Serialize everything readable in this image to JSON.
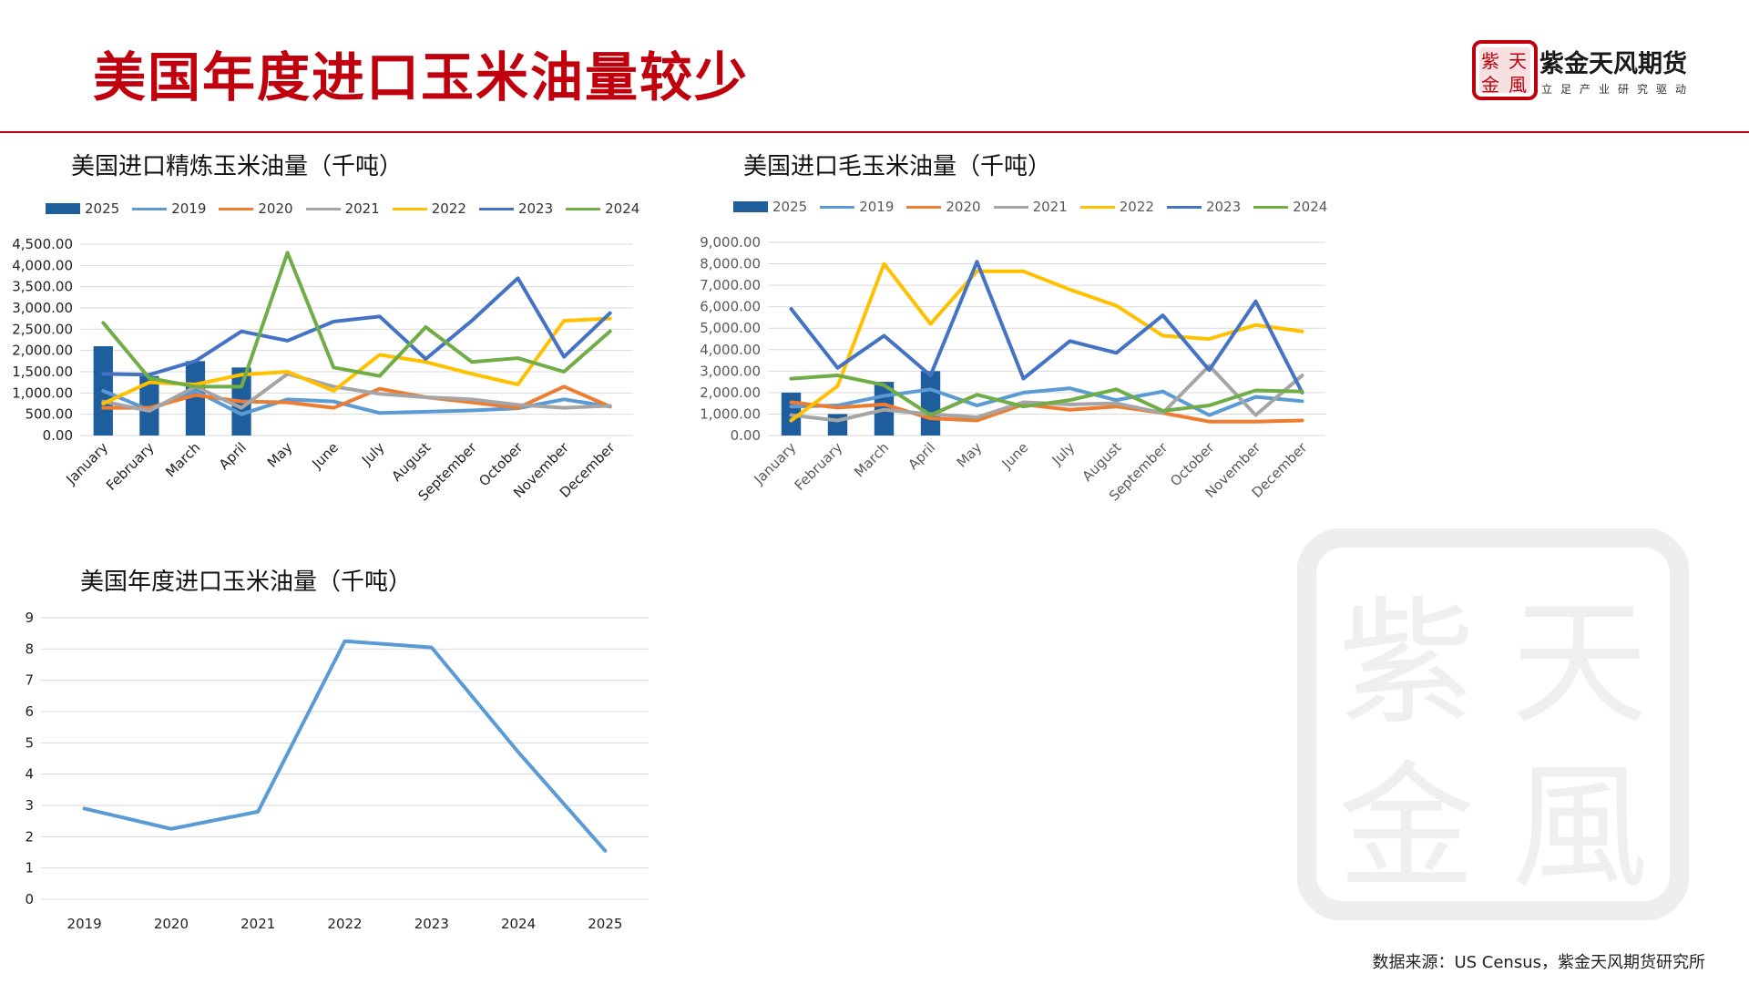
{
  "header": {
    "title": "美国年度进口玉米油量较少",
    "company_name": "紫金天风期货",
    "company_slogan": "立足产业研究驱动",
    "logo_text": "紫天金風",
    "accent_color": "#c0000c"
  },
  "source": "数据来源：US Census，紫金天风期货研究所",
  "series_colors": {
    "2025": "#1f5e9c",
    "2019": "#5b9bd5",
    "2020": "#ed7d31",
    "2021": "#a5a5a5",
    "2022": "#ffc000",
    "2023": "#4472c4",
    "2024": "#70ad47"
  },
  "chart_data": [
    {
      "type": "bar+line",
      "title": "美国进口精炼玉米油量（千吨）",
      "categories": [
        "January",
        "February",
        "March",
        "April",
        "May",
        "June",
        "July",
        "August",
        "September",
        "October",
        "November",
        "December"
      ],
      "y_ticks": [
        "0.00",
        "500.00",
        "1,000.00",
        "1,500.00",
        "2,000.00",
        "2,500.00",
        "3,000.00",
        "3,500.00",
        "4,000.00",
        "4,500.00"
      ],
      "ylim": [
        0,
        4500
      ],
      "grid": true,
      "legend_position": "top",
      "bar_series": {
        "name": "2025",
        "values": [
          2100,
          1400,
          1750,
          1600,
          null,
          null,
          null,
          null,
          null,
          null,
          null,
          null
        ]
      },
      "series": [
        {
          "name": "2019",
          "values": [
            1050,
            600,
            1050,
            500,
            850,
            800,
            530,
            560,
            590,
            640,
            850,
            680
          ]
        },
        {
          "name": "2020",
          "values": [
            650,
            650,
            950,
            800,
            780,
            650,
            1100,
            900,
            780,
            650,
            1150,
            680
          ]
        },
        {
          "name": "2021",
          "values": [
            800,
            580,
            1150,
            650,
            1450,
            1150,
            980,
            900,
            850,
            720,
            650,
            700
          ]
        },
        {
          "name": "2022",
          "values": [
            750,
            1250,
            1200,
            1430,
            1500,
            1050,
            1900,
            1730,
            1450,
            1200,
            2700,
            2750
          ]
        },
        {
          "name": "2023",
          "values": [
            1450,
            1430,
            1750,
            2450,
            2230,
            2680,
            2800,
            1800,
            2700,
            3700,
            1850,
            2880
          ]
        },
        {
          "name": "2024",
          "values": [
            2650,
            1350,
            1150,
            1150,
            4300,
            1600,
            1400,
            2550,
            1730,
            1820,
            1500,
            2450
          ]
        }
      ]
    },
    {
      "type": "bar+line",
      "title": "美国进口毛玉米油量（千吨）",
      "categories": [
        "January",
        "February",
        "March",
        "April",
        "May",
        "June",
        "July",
        "August",
        "September",
        "October",
        "November",
        "December"
      ],
      "y_ticks": [
        "0.00",
        "1,000.00",
        "2,000.00",
        "3,000.00",
        "4,000.00",
        "5,000.00",
        "6,000.00",
        "7,000.00",
        "8,000.00",
        "9,000.00"
      ],
      "ylim": [
        0,
        9000
      ],
      "grid": true,
      "legend_position": "top",
      "bar_series": {
        "name": "2025",
        "values": [
          2000,
          1000,
          2500,
          3000,
          null,
          null,
          null,
          null,
          null,
          null,
          null,
          null
        ]
      },
      "series": [
        {
          "name": "2019",
          "values": [
            1350,
            1400,
            1850,
            2150,
            1400,
            2000,
            2200,
            1650,
            2050,
            950,
            1800,
            1600
          ]
        },
        {
          "name": "2020",
          "values": [
            1550,
            1300,
            1450,
            800,
            700,
            1450,
            1200,
            1350,
            1050,
            650,
            650,
            700
          ]
        },
        {
          "name": "2021",
          "values": [
            950,
            700,
            1200,
            1000,
            850,
            1550,
            1450,
            1500,
            1050,
            3250,
            950,
            2800
          ]
        },
        {
          "name": "2022",
          "values": [
            700,
            2300,
            8000,
            5200,
            7650,
            7650,
            6800,
            6050,
            4650,
            4500,
            5150,
            4850
          ]
        },
        {
          "name": "2023",
          "values": [
            5900,
            3150,
            4650,
            2800,
            8100,
            2650,
            4400,
            3850,
            5600,
            3050,
            6250,
            2000
          ]
        },
        {
          "name": "2024",
          "values": [
            2650,
            2800,
            2350,
            950,
            1900,
            1350,
            1650,
            2150,
            1150,
            1400,
            2100,
            2050
          ]
        }
      ]
    },
    {
      "type": "line",
      "title": "美国年度进口玉米油量（千吨）",
      "categories": [
        "2019",
        "2020",
        "2021",
        "2022",
        "2023",
        "2024",
        "2025"
      ],
      "y_ticks": [
        "0",
        "1",
        "2",
        "3",
        "4",
        "5",
        "6",
        "7",
        "8",
        "9"
      ],
      "ylim": [
        0,
        9
      ],
      "grid": true,
      "legend_position": "none",
      "series": [
        {
          "values": [
            2.9,
            2.25,
            2.8,
            8.25,
            8.05,
            4.7,
            1.55
          ]
        }
      ]
    }
  ]
}
